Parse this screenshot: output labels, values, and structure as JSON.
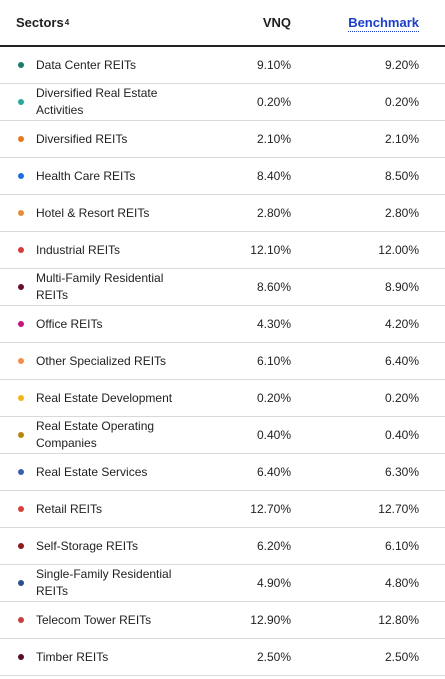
{
  "header": {
    "sectors_label": "Sectors",
    "sectors_footnote": "4",
    "vnq_label": "VNQ",
    "benchmark_label": "Benchmark"
  },
  "rows": [
    {
      "name": "Data Center REITs",
      "vnq": "9.10%",
      "benchmark": "9.20%",
      "color": "#1b7a6e"
    },
    {
      "name": "Diversified Real Estate Activities",
      "vnq": "0.20%",
      "benchmark": "0.20%",
      "color": "#2aa89a"
    },
    {
      "name": "Diversified REITs",
      "vnq": "2.10%",
      "benchmark": "2.10%",
      "color": "#e77a1f"
    },
    {
      "name": "Health Care REITs",
      "vnq": "8.40%",
      "benchmark": "8.50%",
      "color": "#1e6fd9"
    },
    {
      "name": "Hotel & Resort REITs",
      "vnq": "2.80%",
      "benchmark": "2.80%",
      "color": "#ea8a3a"
    },
    {
      "name": "Industrial REITs",
      "vnq": "12.10%",
      "benchmark": "12.00%",
      "color": "#d93a3a"
    },
    {
      "name": "Multi-Family Residential REITs",
      "vnq": "8.60%",
      "benchmark": "8.90%",
      "color": "#6b0f2a"
    },
    {
      "name": "Office REITs",
      "vnq": "4.30%",
      "benchmark": "4.20%",
      "color": "#c8147f"
    },
    {
      "name": "Other Specialized REITs",
      "vnq": "6.10%",
      "benchmark": "6.40%",
      "color": "#f0904a"
    },
    {
      "name": "Real Estate Development",
      "vnq": "0.20%",
      "benchmark": "0.20%",
      "color": "#f2b418"
    },
    {
      "name": "Real Estate Operating Companies",
      "vnq": "0.40%",
      "benchmark": "0.40%",
      "color": "#b8860b"
    },
    {
      "name": "Real Estate Services",
      "vnq": "6.40%",
      "benchmark": "6.30%",
      "color": "#3a5fb0"
    },
    {
      "name": "Retail REITs",
      "vnq": "12.70%",
      "benchmark": "12.70%",
      "color": "#d9403a"
    },
    {
      "name": "Self-Storage REITs",
      "vnq": "6.20%",
      "benchmark": "6.10%",
      "color": "#8b1a1a"
    },
    {
      "name": "Single-Family Residential REITs",
      "vnq": "4.90%",
      "benchmark": "4.80%",
      "color": "#2f4e8f"
    },
    {
      "name": "Telecom Tower REITs",
      "vnq": "12.90%",
      "benchmark": "12.80%",
      "color": "#c84040"
    },
    {
      "name": "Timber REITs",
      "vnq": "2.50%",
      "benchmark": "2.50%",
      "color": "#5a0f25"
    }
  ]
}
